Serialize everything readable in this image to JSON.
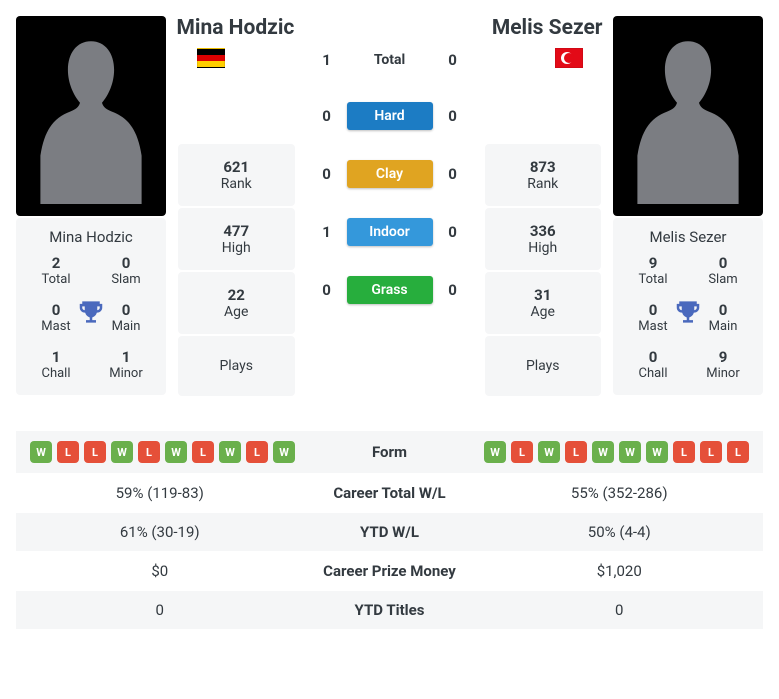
{
  "colors": {
    "bg_card": "#f5f6f7",
    "text": "#333a40",
    "win": "#6ab04c",
    "loss": "#e55039",
    "trophy": "#4a69bd",
    "hard": "#1c7cc4",
    "clay": "#e0a421",
    "indoor": "#3498db",
    "grass": "#27ae3d"
  },
  "player1": {
    "name": "Mina Hodzic",
    "flag": "de",
    "titles": {
      "total": {
        "value": "2",
        "label": "Total"
      },
      "slam": {
        "value": "0",
        "label": "Slam"
      },
      "mast": {
        "value": "0",
        "label": "Mast"
      },
      "main": {
        "value": "0",
        "label": "Main"
      },
      "chall": {
        "value": "1",
        "label": "Chall"
      },
      "minor": {
        "value": "1",
        "label": "Minor"
      }
    },
    "stats": {
      "rank": {
        "value": "621",
        "label": "Rank"
      },
      "high": {
        "value": "477",
        "label": "High"
      },
      "age": {
        "value": "22",
        "label": "Age"
      },
      "plays": {
        "value": "",
        "label": "Plays"
      }
    },
    "form": [
      "W",
      "L",
      "L",
      "W",
      "L",
      "W",
      "L",
      "W",
      "L",
      "W"
    ]
  },
  "player2": {
    "name": "Melis Sezer",
    "flag": "tr",
    "titles": {
      "total": {
        "value": "9",
        "label": "Total"
      },
      "slam": {
        "value": "0",
        "label": "Slam"
      },
      "mast": {
        "value": "0",
        "label": "Mast"
      },
      "main": {
        "value": "0",
        "label": "Main"
      },
      "chall": {
        "value": "0",
        "label": "Chall"
      },
      "minor": {
        "value": "9",
        "label": "Minor"
      }
    },
    "stats": {
      "rank": {
        "value": "873",
        "label": "Rank"
      },
      "high": {
        "value": "336",
        "label": "High"
      },
      "age": {
        "value": "31",
        "label": "Age"
      },
      "plays": {
        "value": "",
        "label": "Plays"
      }
    },
    "form": [
      "W",
      "L",
      "W",
      "L",
      "W",
      "W",
      "W",
      "L",
      "L",
      "L"
    ]
  },
  "h2h": {
    "rows": [
      {
        "p1": "1",
        "label": "Total",
        "p2": "0",
        "pill": false
      },
      {
        "p1": "0",
        "label": "Hard",
        "p2": "0",
        "pill": true,
        "color": "#1c7cc4"
      },
      {
        "p1": "0",
        "label": "Clay",
        "p2": "0",
        "pill": true,
        "color": "#e0a421"
      },
      {
        "p1": "1",
        "label": "Indoor",
        "p2": "0",
        "pill": true,
        "color": "#3498db"
      },
      {
        "p1": "0",
        "label": "Grass",
        "p2": "0",
        "pill": true,
        "color": "#27ae3d"
      }
    ]
  },
  "compare": [
    {
      "label": "Form",
      "type": "form"
    },
    {
      "label": "Career Total W/L",
      "p1": "59% (119-83)",
      "p2": "55% (352-286)"
    },
    {
      "label": "YTD W/L",
      "p1": "61% (30-19)",
      "p2": "50% (4-4)"
    },
    {
      "label": "Career Prize Money",
      "p1": "$0",
      "p2": "$1,020"
    },
    {
      "label": "YTD Titles",
      "p1": "0",
      "p2": "0"
    }
  ]
}
